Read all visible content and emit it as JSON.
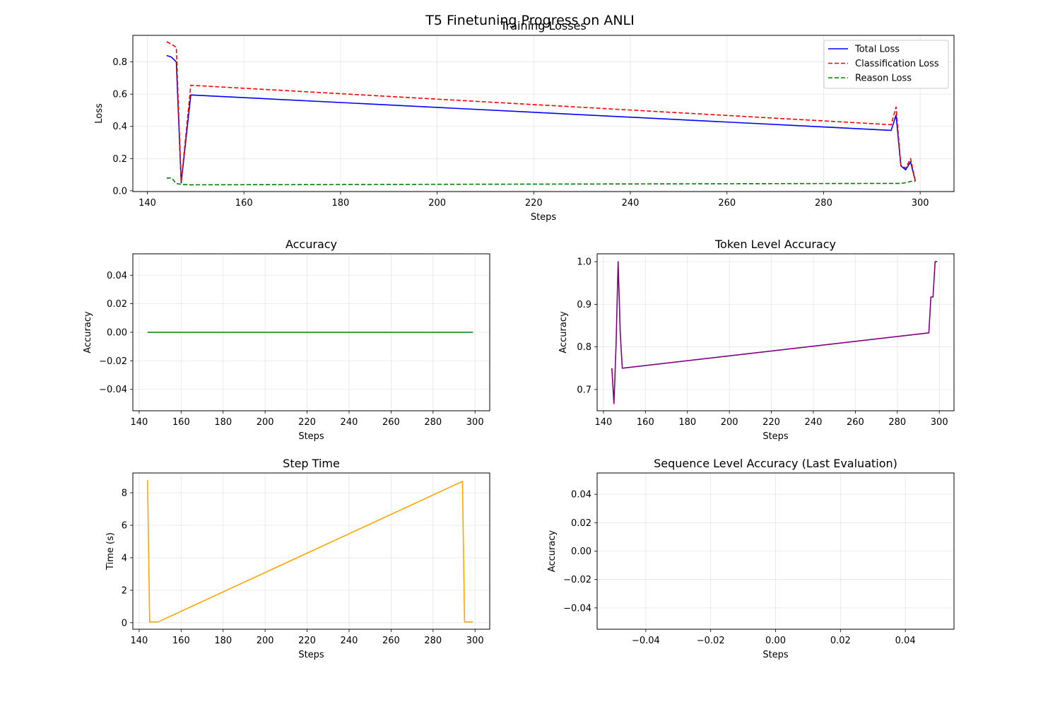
{
  "figure": {
    "suptitle": "T5 Finetuning Progress on ANLI"
  },
  "chart_data": [
    {
      "type": "line",
      "title": "Training Losses",
      "xlabel": "Steps",
      "ylabel": "Loss",
      "xlim": [
        137,
        307
      ],
      "ylim": [
        -0.005,
        0.965
      ],
      "xticks": [
        140,
        160,
        180,
        200,
        220,
        240,
        260,
        280,
        300
      ],
      "xtick_labels": [
        "140",
        "160",
        "180",
        "200",
        "220",
        "240",
        "260",
        "280",
        "300"
      ],
      "yticks": [
        0.0,
        0.2,
        0.4,
        0.6,
        0.8
      ],
      "ytick_labels": [
        "0.0",
        "0.2",
        "0.4",
        "0.6",
        "0.8"
      ],
      "grid": true,
      "legend": "top-right",
      "series": [
        {
          "name": "Total Loss",
          "color": "#0000ff",
          "dash": "solid",
          "x": [
            144,
            145,
            146,
            147,
            149,
            294,
            295,
            296,
            297,
            298,
            299
          ],
          "y": [
            0.84,
            0.83,
            0.8,
            0.05,
            0.595,
            0.375,
            0.47,
            0.155,
            0.13,
            0.18,
            0.06
          ]
        },
        {
          "name": "Classification Loss",
          "color": "#ff0000",
          "dash": "dashed",
          "x": [
            144,
            145,
            146,
            147,
            149,
            294,
            295,
            296,
            297,
            298,
            299
          ],
          "y": [
            0.925,
            0.91,
            0.89,
            0.055,
            0.655,
            0.41,
            0.52,
            0.16,
            0.14,
            0.2,
            0.06
          ]
        },
        {
          "name": "Reason Loss",
          "color": "#008000",
          "dash": "dashed",
          "x": [
            144,
            145,
            146,
            147,
            149,
            296,
            297,
            298,
            299
          ],
          "y": [
            0.078,
            0.08,
            0.045,
            0.04,
            0.037,
            0.046,
            0.05,
            0.058,
            0.06
          ]
        }
      ]
    },
    {
      "type": "line",
      "title": "Accuracy",
      "xlabel": "Steps",
      "ylabel": "Accuracy",
      "xlim": [
        137,
        307
      ],
      "ylim": [
        -0.055,
        0.055
      ],
      "xticks": [
        140,
        160,
        180,
        200,
        220,
        240,
        260,
        280,
        300
      ],
      "xtick_labels": [
        "140",
        "160",
        "180",
        "200",
        "220",
        "240",
        "260",
        "280",
        "300"
      ],
      "yticks": [
        -0.04,
        -0.02,
        0.0,
        0.02,
        0.04
      ],
      "ytick_labels": [
        "−0.04",
        "−0.02",
        "0.00",
        "0.02",
        "0.04"
      ],
      "grid": true,
      "series": [
        {
          "color": "#008000",
          "dash": "solid",
          "x": [
            144,
            299
          ],
          "y": [
            0.0,
            0.0
          ]
        }
      ]
    },
    {
      "type": "line",
      "title": "Token Level Accuracy",
      "xlabel": "Steps",
      "ylabel": "Accuracy",
      "xlim": [
        137,
        307
      ],
      "ylim": [
        0.65,
        1.0185
      ],
      "xticks": [
        140,
        160,
        180,
        200,
        220,
        240,
        260,
        280,
        300
      ],
      "xtick_labels": [
        "140",
        "160",
        "180",
        "200",
        "220",
        "240",
        "260",
        "280",
        "300"
      ],
      "yticks": [
        0.7,
        0.8,
        0.9,
        1.0
      ],
      "ytick_labels": [
        "0.7",
        "0.8",
        "0.9",
        "1.0"
      ],
      "grid": true,
      "series": [
        {
          "color": "#800080",
          "dash": "solid",
          "x": [
            144,
            145,
            146,
            147,
            148,
            149,
            295,
            296,
            297,
            298,
            299
          ],
          "y": [
            0.75,
            0.667,
            0.8,
            1.0,
            0.833,
            0.75,
            0.833,
            0.917,
            0.917,
            1.0,
            1.0
          ]
        }
      ]
    },
    {
      "type": "line",
      "title": "Step Time",
      "xlabel": "Steps",
      "ylabel": "Time (s)",
      "xlim": [
        137,
        307
      ],
      "ylim": [
        -0.4,
        9.22
      ],
      "xticks": [
        140,
        160,
        180,
        200,
        220,
        240,
        260,
        280,
        300
      ],
      "xtick_labels": [
        "140",
        "160",
        "180",
        "200",
        "220",
        "240",
        "260",
        "280",
        "300"
      ],
      "yticks": [
        0,
        2,
        4,
        6,
        8
      ],
      "ytick_labels": [
        "0",
        "2",
        "4",
        "6",
        "8"
      ],
      "grid": true,
      "series": [
        {
          "color": "#ffa500",
          "dash": "solid",
          "x": [
            144,
            145,
            146,
            147,
            148,
            149,
            294,
            295,
            296,
            297,
            298,
            299
          ],
          "y": [
            8.78,
            0.05,
            0.05,
            0.05,
            0.05,
            0.05,
            8.7,
            0.05,
            0.05,
            0.05,
            0.05,
            0.05
          ]
        }
      ]
    },
    {
      "type": "line",
      "title": "Sequence Level Accuracy (Last Evaluation)",
      "xlabel": "Steps",
      "ylabel": "Accuracy",
      "xlim": [
        -0.055,
        0.055
      ],
      "ylim": [
        -0.055,
        0.055
      ],
      "xticks": [
        -0.04,
        -0.02,
        0.0,
        0.02,
        0.04
      ],
      "xtick_labels": [
        "−0.04",
        "−0.02",
        "0.00",
        "0.02",
        "0.04"
      ],
      "yticks": [
        -0.04,
        -0.02,
        0.0,
        0.02,
        0.04
      ],
      "ytick_labels": [
        "−0.04",
        "−0.02",
        "0.00",
        "0.02",
        "0.04"
      ],
      "grid": true,
      "series": []
    }
  ]
}
